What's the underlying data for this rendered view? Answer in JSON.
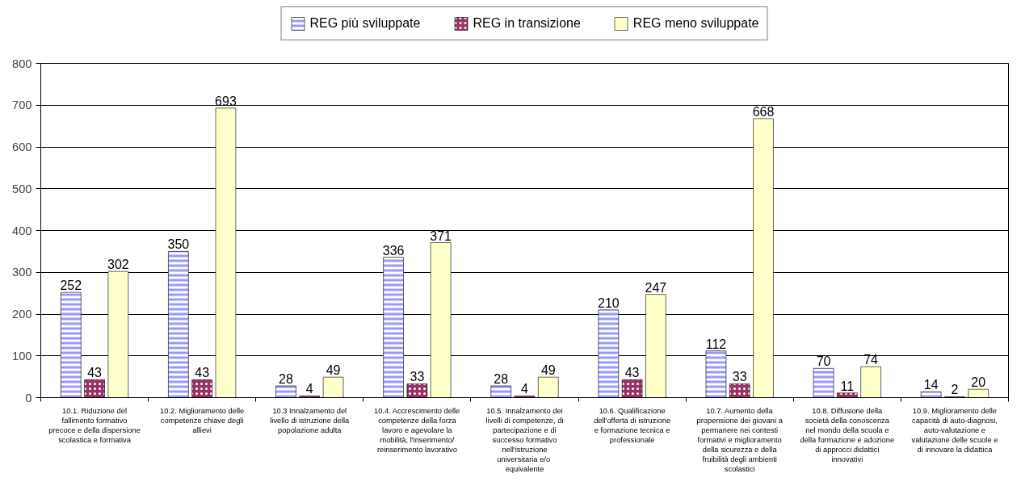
{
  "chart_data": {
    "type": "bar",
    "categories": [
      "10.1. Riduzione del fallimento formativo precoce e della dispersione scolastica e formativa",
      "10.2. Miglioramento delle competenze chiave degli allievi",
      "10.3 Innalzamento del livello di istruzione della popolazione adulta",
      "10.4. Accrescimento delle competenze della forza lavoro e agevolare la mobilità, l'inserimento/ reinserimento lavorativo",
      "10.5. Innalzamento dei livelli di competenze, di partecipazione e di successo formativo nell'istruzione universitaria  e/o equivalente",
      "10.6. Qualificazione dell'offerta di istruzione e formazione tecnica e professionale",
      "10.7. Aumento della propensione dei giovani a permanere nei contesti formativi e miglioramento della sicurezza e della fruibilità degli ambienti scolastici",
      "10.8. Diffusione della società della conoscenza nel mondo della scuola e della formazione e adozione di approcci didattici innovativi",
      "10.9. Miglioramento delle capacità di auto-diagnosi, auto-valutazione e valutazione delle scuole e di innovare la didattica"
    ],
    "series": [
      {
        "name": "REG più sviluppate",
        "color": "#9999ff",
        "values": [
          252,
          350,
          28,
          336,
          28,
          210,
          112,
          70,
          14
        ]
      },
      {
        "name": "REG in transizione",
        "color": "#993366",
        "values": [
          43,
          43,
          4,
          33,
          4,
          43,
          33,
          11,
          2
        ]
      },
      {
        "name": "REG meno sviluppate",
        "color": "#ffffcc",
        "values": [
          302,
          693,
          49,
          371,
          49,
          247,
          668,
          74,
          20
        ]
      }
    ],
    "ylim": [
      0,
      800
    ],
    "yticks": [
      0,
      100,
      200,
      300,
      400,
      500,
      600,
      700,
      800
    ],
    "grid": "y",
    "legend": "top",
    "data_labels": true
  }
}
